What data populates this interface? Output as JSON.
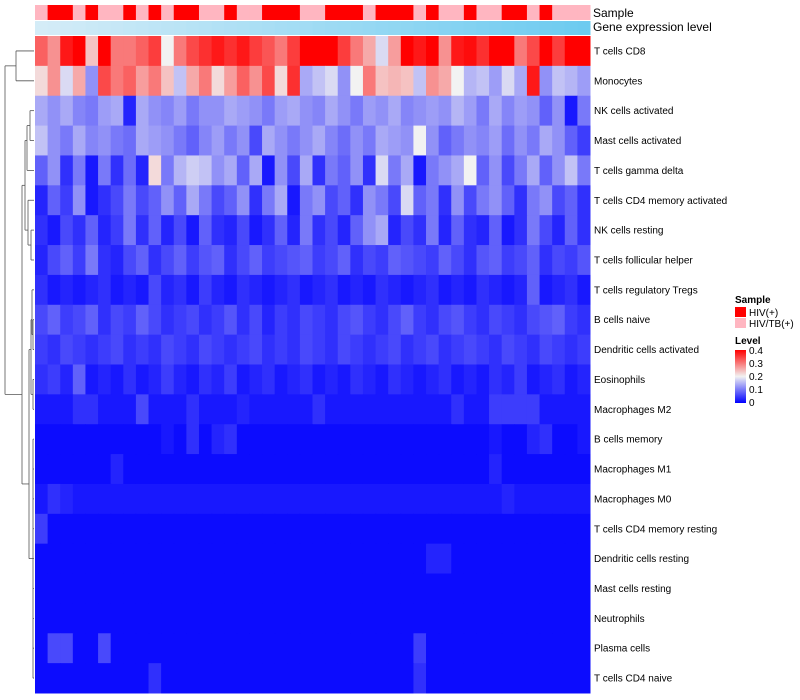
{
  "chart_data": {
    "type": "heatmap",
    "title": "",
    "annotation_labels": {
      "sample": "Sample",
      "expression": "Gene expression level"
    },
    "rows": [
      "T cells CD8",
      "Monocytes",
      "NK cells activated",
      "Mast cells activated",
      "T cells gamma delta",
      "T cells CD4 memory activated",
      "NK cells resting",
      "T cells follicular helper",
      "T cells regulatory  Tregs",
      "B cells naive",
      "Dendritic cells activated",
      "Eosinophils",
      "Macrophages M2",
      "B cells memory",
      "Macrophages M1",
      "Macrophages M0",
      "T cells CD4 memory resting",
      "Dendritic cells resting",
      "Mast cells resting",
      "Neutrophils",
      "Plasma cells",
      "T cells CD4 naive"
    ],
    "columns_count": 44,
    "sample_groups": [
      1,
      0,
      0,
      1,
      0,
      1,
      1,
      0,
      1,
      0,
      1,
      0,
      0,
      1,
      1,
      0,
      1,
      1,
      0,
      0,
      0,
      1,
      1,
      0,
      0,
      0,
      1,
      0,
      0,
      0,
      1,
      0,
      1,
      1,
      0,
      1,
      1,
      0,
      0,
      1,
      0,
      1,
      1,
      1
    ],
    "sample_legend": {
      "title": "Sample",
      "items": [
        {
          "name": "HIV(+)",
          "color": "#ff0000"
        },
        {
          "name": "HIV/TB(+)",
          "color": "#ffb6c1"
        }
      ]
    },
    "expression_bar": {
      "from": "#d4ecf7",
      "to": "#6dcbf0"
    },
    "color_scale": {
      "title": "Level",
      "min": 0,
      "max": 0.4,
      "ticks": [
        "0.4",
        "0.3",
        "0.2",
        "0.1",
        "0"
      ],
      "low": "#0000ff",
      "mid": "#f2f2f2",
      "high": "#ff0000"
    },
    "values": [
      [
        0.32,
        0.28,
        0.38,
        0.4,
        0.24,
        0.4,
        0.3,
        0.3,
        0.32,
        0.35,
        0.2,
        0.3,
        0.34,
        0.36,
        0.38,
        0.36,
        0.38,
        0.35,
        0.33,
        0.3,
        0.35,
        0.4,
        0.4,
        0.4,
        0.35,
        0.3,
        0.26,
        0.18,
        0.27,
        0.4,
        0.38,
        0.4,
        0.28,
        0.38,
        0.39,
        0.36,
        0.4,
        0.4,
        0.3,
        0.34,
        0.4,
        0.35,
        0.4,
        0.4
      ],
      [
        0.22,
        0.28,
        0.18,
        0.26,
        0.12,
        0.34,
        0.3,
        0.32,
        0.27,
        0.3,
        0.24,
        0.16,
        0.26,
        0.3,
        0.22,
        0.27,
        0.32,
        0.28,
        0.34,
        0.22,
        0.36,
        0.14,
        0.16,
        0.18,
        0.12,
        0.2,
        0.3,
        0.24,
        0.25,
        0.24,
        0.16,
        0.28,
        0.26,
        0.2,
        0.15,
        0.16,
        0.13,
        0.18,
        0.14,
        0.38,
        0.12,
        0.16,
        0.15,
        0.13
      ],
      [
        0.14,
        0.12,
        0.14,
        0.11,
        0.1,
        0.13,
        0.14,
        0.03,
        0.14,
        0.12,
        0.11,
        0.13,
        0.1,
        0.12,
        0.12,
        0.14,
        0.13,
        0.12,
        0.1,
        0.13,
        0.14,
        0.12,
        0.11,
        0.14,
        0.12,
        0.1,
        0.13,
        0.12,
        0.14,
        0.11,
        0.12,
        0.13,
        0.12,
        0.15,
        0.13,
        0.1,
        0.14,
        0.11,
        0.13,
        0.12,
        0.08,
        0.12,
        0.02,
        0.1
      ],
      [
        0.16,
        0.12,
        0.1,
        0.14,
        0.11,
        0.12,
        0.1,
        0.09,
        0.14,
        0.13,
        0.12,
        0.1,
        0.08,
        0.11,
        0.13,
        0.1,
        0.12,
        0.06,
        0.14,
        0.12,
        0.1,
        0.12,
        0.14,
        0.11,
        0.09,
        0.12,
        0.1,
        0.14,
        0.13,
        0.12,
        0.2,
        0.12,
        0.08,
        0.1,
        0.12,
        0.11,
        0.13,
        0.09,
        0.12,
        0.1,
        0.14,
        0.12,
        0.08,
        0.05
      ],
      [
        0.08,
        0.12,
        0.04,
        0.1,
        0.02,
        0.1,
        0.04,
        0.09,
        0.03,
        0.22,
        0.1,
        0.15,
        0.17,
        0.16,
        0.12,
        0.14,
        0.08,
        0.14,
        0.02,
        0.12,
        0.06,
        0.14,
        0.04,
        0.1,
        0.08,
        0.12,
        0.04,
        0.18,
        0.1,
        0.14,
        0.02,
        0.1,
        0.12,
        0.14,
        0.2,
        0.08,
        0.12,
        0.06,
        0.1,
        0.14,
        0.08,
        0.12,
        0.16,
        0.1
      ],
      [
        0.03,
        0.08,
        0.05,
        0.12,
        0.02,
        0.04,
        0.06,
        0.1,
        0.06,
        0.08,
        0.12,
        0.08,
        0.14,
        0.1,
        0.06,
        0.08,
        0.12,
        0.04,
        0.1,
        0.14,
        0.02,
        0.1,
        0.12,
        0.06,
        0.08,
        0.04,
        0.12,
        0.1,
        0.06,
        0.18,
        0.08,
        0.1,
        0.04,
        0.12,
        0.06,
        0.1,
        0.12,
        0.08,
        0.04,
        0.1,
        0.12,
        0.06,
        0.08,
        0.04
      ],
      [
        0.04,
        0.02,
        0.06,
        0.04,
        0.08,
        0.03,
        0.05,
        0.1,
        0.04,
        0.08,
        0.03,
        0.06,
        0.02,
        0.08,
        0.04,
        0.03,
        0.06,
        0.02,
        0.04,
        0.08,
        0.03,
        0.1,
        0.04,
        0.06,
        0.03,
        0.08,
        0.12,
        0.14,
        0.03,
        0.06,
        0.04,
        0.1,
        0.03,
        0.08,
        0.04,
        0.03,
        0.08,
        0.02,
        0.04,
        0.1,
        0.06,
        0.03,
        0.08,
        0.04
      ],
      [
        0.03,
        0.06,
        0.08,
        0.05,
        0.1,
        0.04,
        0.03,
        0.06,
        0.08,
        0.04,
        0.06,
        0.08,
        0.05,
        0.07,
        0.08,
        0.04,
        0.06,
        0.08,
        0.05,
        0.06,
        0.07,
        0.08,
        0.05,
        0.06,
        0.08,
        0.04,
        0.06,
        0.05,
        0.08,
        0.07,
        0.06,
        0.05,
        0.08,
        0.06,
        0.04,
        0.07,
        0.08,
        0.05,
        0.06,
        0.08,
        0.04,
        0.06,
        0.05,
        0.07
      ],
      [
        0.04,
        0.02,
        0.03,
        0.02,
        0.03,
        0.04,
        0.02,
        0.03,
        0.02,
        0.06,
        0.03,
        0.04,
        0.02,
        0.05,
        0.03,
        0.02,
        0.04,
        0.03,
        0.02,
        0.03,
        0.04,
        0.02,
        0.03,
        0.04,
        0.02,
        0.03,
        0.02,
        0.04,
        0.03,
        0.02,
        0.03,
        0.04,
        0.02,
        0.03,
        0.02,
        0.04,
        0.03,
        0.02,
        0.03,
        0.08,
        0.02,
        0.03,
        0.04,
        0.02
      ],
      [
        0.06,
        0.08,
        0.05,
        0.06,
        0.08,
        0.04,
        0.06,
        0.05,
        0.08,
        0.06,
        0.04,
        0.05,
        0.06,
        0.04,
        0.05,
        0.07,
        0.04,
        0.06,
        0.03,
        0.05,
        0.04,
        0.06,
        0.05,
        0.04,
        0.06,
        0.07,
        0.05,
        0.04,
        0.06,
        0.08,
        0.05,
        0.04,
        0.06,
        0.07,
        0.05,
        0.04,
        0.06,
        0.05,
        0.04,
        0.06,
        0.07,
        0.08,
        0.05,
        0.04
      ],
      [
        0.05,
        0.04,
        0.06,
        0.05,
        0.04,
        0.05,
        0.06,
        0.04,
        0.05,
        0.04,
        0.06,
        0.05,
        0.04,
        0.06,
        0.05,
        0.04,
        0.05,
        0.06,
        0.04,
        0.05,
        0.04,
        0.06,
        0.05,
        0.04,
        0.06,
        0.05,
        0.04,
        0.05,
        0.06,
        0.04,
        0.05,
        0.06,
        0.04,
        0.05,
        0.06,
        0.05,
        0.04,
        0.06,
        0.05,
        0.04,
        0.06,
        0.05,
        0.04,
        0.05
      ],
      [
        0.04,
        0.05,
        0.03,
        0.08,
        0.02,
        0.03,
        0.02,
        0.04,
        0.02,
        0.03,
        0.05,
        0.03,
        0.02,
        0.04,
        0.03,
        0.05,
        0.02,
        0.03,
        0.04,
        0.02,
        0.03,
        0.04,
        0.02,
        0.03,
        0.02,
        0.04,
        0.03,
        0.02,
        0.04,
        0.03,
        0.02,
        0.03,
        0.04,
        0.02,
        0.03,
        0.02,
        0.04,
        0.03,
        0.05,
        0.02,
        0.03,
        0.04,
        0.02,
        0.03
      ],
      [
        0.02,
        0.02,
        0.02,
        0.04,
        0.04,
        0.02,
        0.02,
        0.02,
        0.06,
        0.02,
        0.02,
        0.02,
        0.04,
        0.02,
        0.02,
        0.02,
        0.03,
        0.02,
        0.02,
        0.02,
        0.02,
        0.02,
        0.04,
        0.02,
        0.02,
        0.02,
        0.02,
        0.02,
        0.02,
        0.02,
        0.02,
        0.02,
        0.02,
        0.04,
        0.02,
        0.02,
        0.05,
        0.05,
        0.05,
        0.05,
        0.02,
        0.02,
        0.02,
        0.02
      ],
      [
        0.01,
        0.01,
        0.01,
        0.01,
        0.01,
        0.01,
        0.01,
        0.01,
        0.01,
        0.01,
        0.02,
        0.01,
        0.04,
        0.01,
        0.03,
        0.04,
        0.01,
        0.01,
        0.01,
        0.01,
        0.01,
        0.01,
        0.01,
        0.01,
        0.01,
        0.01,
        0.01,
        0.01,
        0.01,
        0.01,
        0.01,
        0.01,
        0.01,
        0.01,
        0.01,
        0.01,
        0.02,
        0.01,
        0.01,
        0.03,
        0.04,
        0.01,
        0.01,
        0.02
      ],
      [
        0.01,
        0.01,
        0.01,
        0.01,
        0.01,
        0.01,
        0.03,
        0.01,
        0.01,
        0.01,
        0.01,
        0.01,
        0.01,
        0.01,
        0.01,
        0.01,
        0.01,
        0.01,
        0.01,
        0.01,
        0.01,
        0.01,
        0.01,
        0.01,
        0.01,
        0.01,
        0.01,
        0.01,
        0.01,
        0.01,
        0.01,
        0.01,
        0.01,
        0.01,
        0.01,
        0.01,
        0.03,
        0.01,
        0.01,
        0.01,
        0.01,
        0.01,
        0.01,
        0.01
      ],
      [
        0.02,
        0.04,
        0.03,
        0.02,
        0.02,
        0.02,
        0.02,
        0.02,
        0.02,
        0.02,
        0.02,
        0.02,
        0.02,
        0.02,
        0.02,
        0.02,
        0.02,
        0.02,
        0.02,
        0.02,
        0.02,
        0.02,
        0.02,
        0.02,
        0.02,
        0.02,
        0.02,
        0.02,
        0.02,
        0.02,
        0.02,
        0.02,
        0.02,
        0.02,
        0.02,
        0.02,
        0.02,
        0.03,
        0.02,
        0.02,
        0.02,
        0.02,
        0.02,
        0.02
      ],
      [
        0.05,
        0.01,
        0.01,
        0.01,
        0.01,
        0.01,
        0.01,
        0.01,
        0.01,
        0.01,
        0.01,
        0.01,
        0.01,
        0.01,
        0.01,
        0.01,
        0.01,
        0.01,
        0.01,
        0.01,
        0.01,
        0.01,
        0.01,
        0.01,
        0.01,
        0.01,
        0.01,
        0.01,
        0.01,
        0.01,
        0.01,
        0.01,
        0.01,
        0.01,
        0.01,
        0.01,
        0.01,
        0.01,
        0.01,
        0.01,
        0.01,
        0.01,
        0.01,
        0.01
      ],
      [
        0.01,
        0.01,
        0.01,
        0.01,
        0.01,
        0.01,
        0.01,
        0.01,
        0.01,
        0.01,
        0.01,
        0.01,
        0.01,
        0.01,
        0.01,
        0.01,
        0.01,
        0.01,
        0.01,
        0.01,
        0.01,
        0.01,
        0.01,
        0.01,
        0.01,
        0.01,
        0.01,
        0.01,
        0.01,
        0.01,
        0.01,
        0.03,
        0.03,
        0.01,
        0.01,
        0.01,
        0.01,
        0.01,
        0.01,
        0.01,
        0.01,
        0.01,
        0.01,
        0.01
      ],
      [
        0.01,
        0.01,
        0.01,
        0.01,
        0.01,
        0.01,
        0.01,
        0.01,
        0.01,
        0.01,
        0.01,
        0.01,
        0.01,
        0.01,
        0.01,
        0.01,
        0.01,
        0.01,
        0.01,
        0.01,
        0.01,
        0.01,
        0.01,
        0.01,
        0.01,
        0.01,
        0.01,
        0.01,
        0.01,
        0.01,
        0.01,
        0.01,
        0.01,
        0.01,
        0.01,
        0.01,
        0.01,
        0.01,
        0.01,
        0.01,
        0.01,
        0.01,
        0.01,
        0.01
      ],
      [
        0.01,
        0.01,
        0.01,
        0.01,
        0.01,
        0.01,
        0.01,
        0.01,
        0.01,
        0.01,
        0.01,
        0.01,
        0.01,
        0.01,
        0.01,
        0.01,
        0.01,
        0.01,
        0.01,
        0.01,
        0.01,
        0.01,
        0.01,
        0.01,
        0.01,
        0.01,
        0.01,
        0.01,
        0.01,
        0.01,
        0.01,
        0.01,
        0.01,
        0.01,
        0.01,
        0.01,
        0.01,
        0.01,
        0.01,
        0.01,
        0.01,
        0.01,
        0.01,
        0.01
      ],
      [
        0.01,
        0.06,
        0.06,
        0.01,
        0.01,
        0.06,
        0.01,
        0.01,
        0.01,
        0.01,
        0.01,
        0.01,
        0.01,
        0.01,
        0.01,
        0.01,
        0.01,
        0.01,
        0.01,
        0.01,
        0.01,
        0.01,
        0.01,
        0.01,
        0.01,
        0.01,
        0.01,
        0.01,
        0.01,
        0.01,
        0.05,
        0.01,
        0.01,
        0.01,
        0.01,
        0.01,
        0.01,
        0.01,
        0.01,
        0.01,
        0.01,
        0.01,
        0.01,
        0.01
      ],
      [
        0.01,
        0.01,
        0.01,
        0.01,
        0.01,
        0.01,
        0.01,
        0.01,
        0.01,
        0.04,
        0.01,
        0.01,
        0.01,
        0.01,
        0.01,
        0.01,
        0.01,
        0.01,
        0.01,
        0.01,
        0.01,
        0.01,
        0.01,
        0.01,
        0.01,
        0.01,
        0.01,
        0.01,
        0.01,
        0.01,
        0.04,
        0.01,
        0.01,
        0.01,
        0.01,
        0.01,
        0.01,
        0.01,
        0.01,
        0.01,
        0.01,
        0.01,
        0.01,
        0.01
      ]
    ]
  }
}
